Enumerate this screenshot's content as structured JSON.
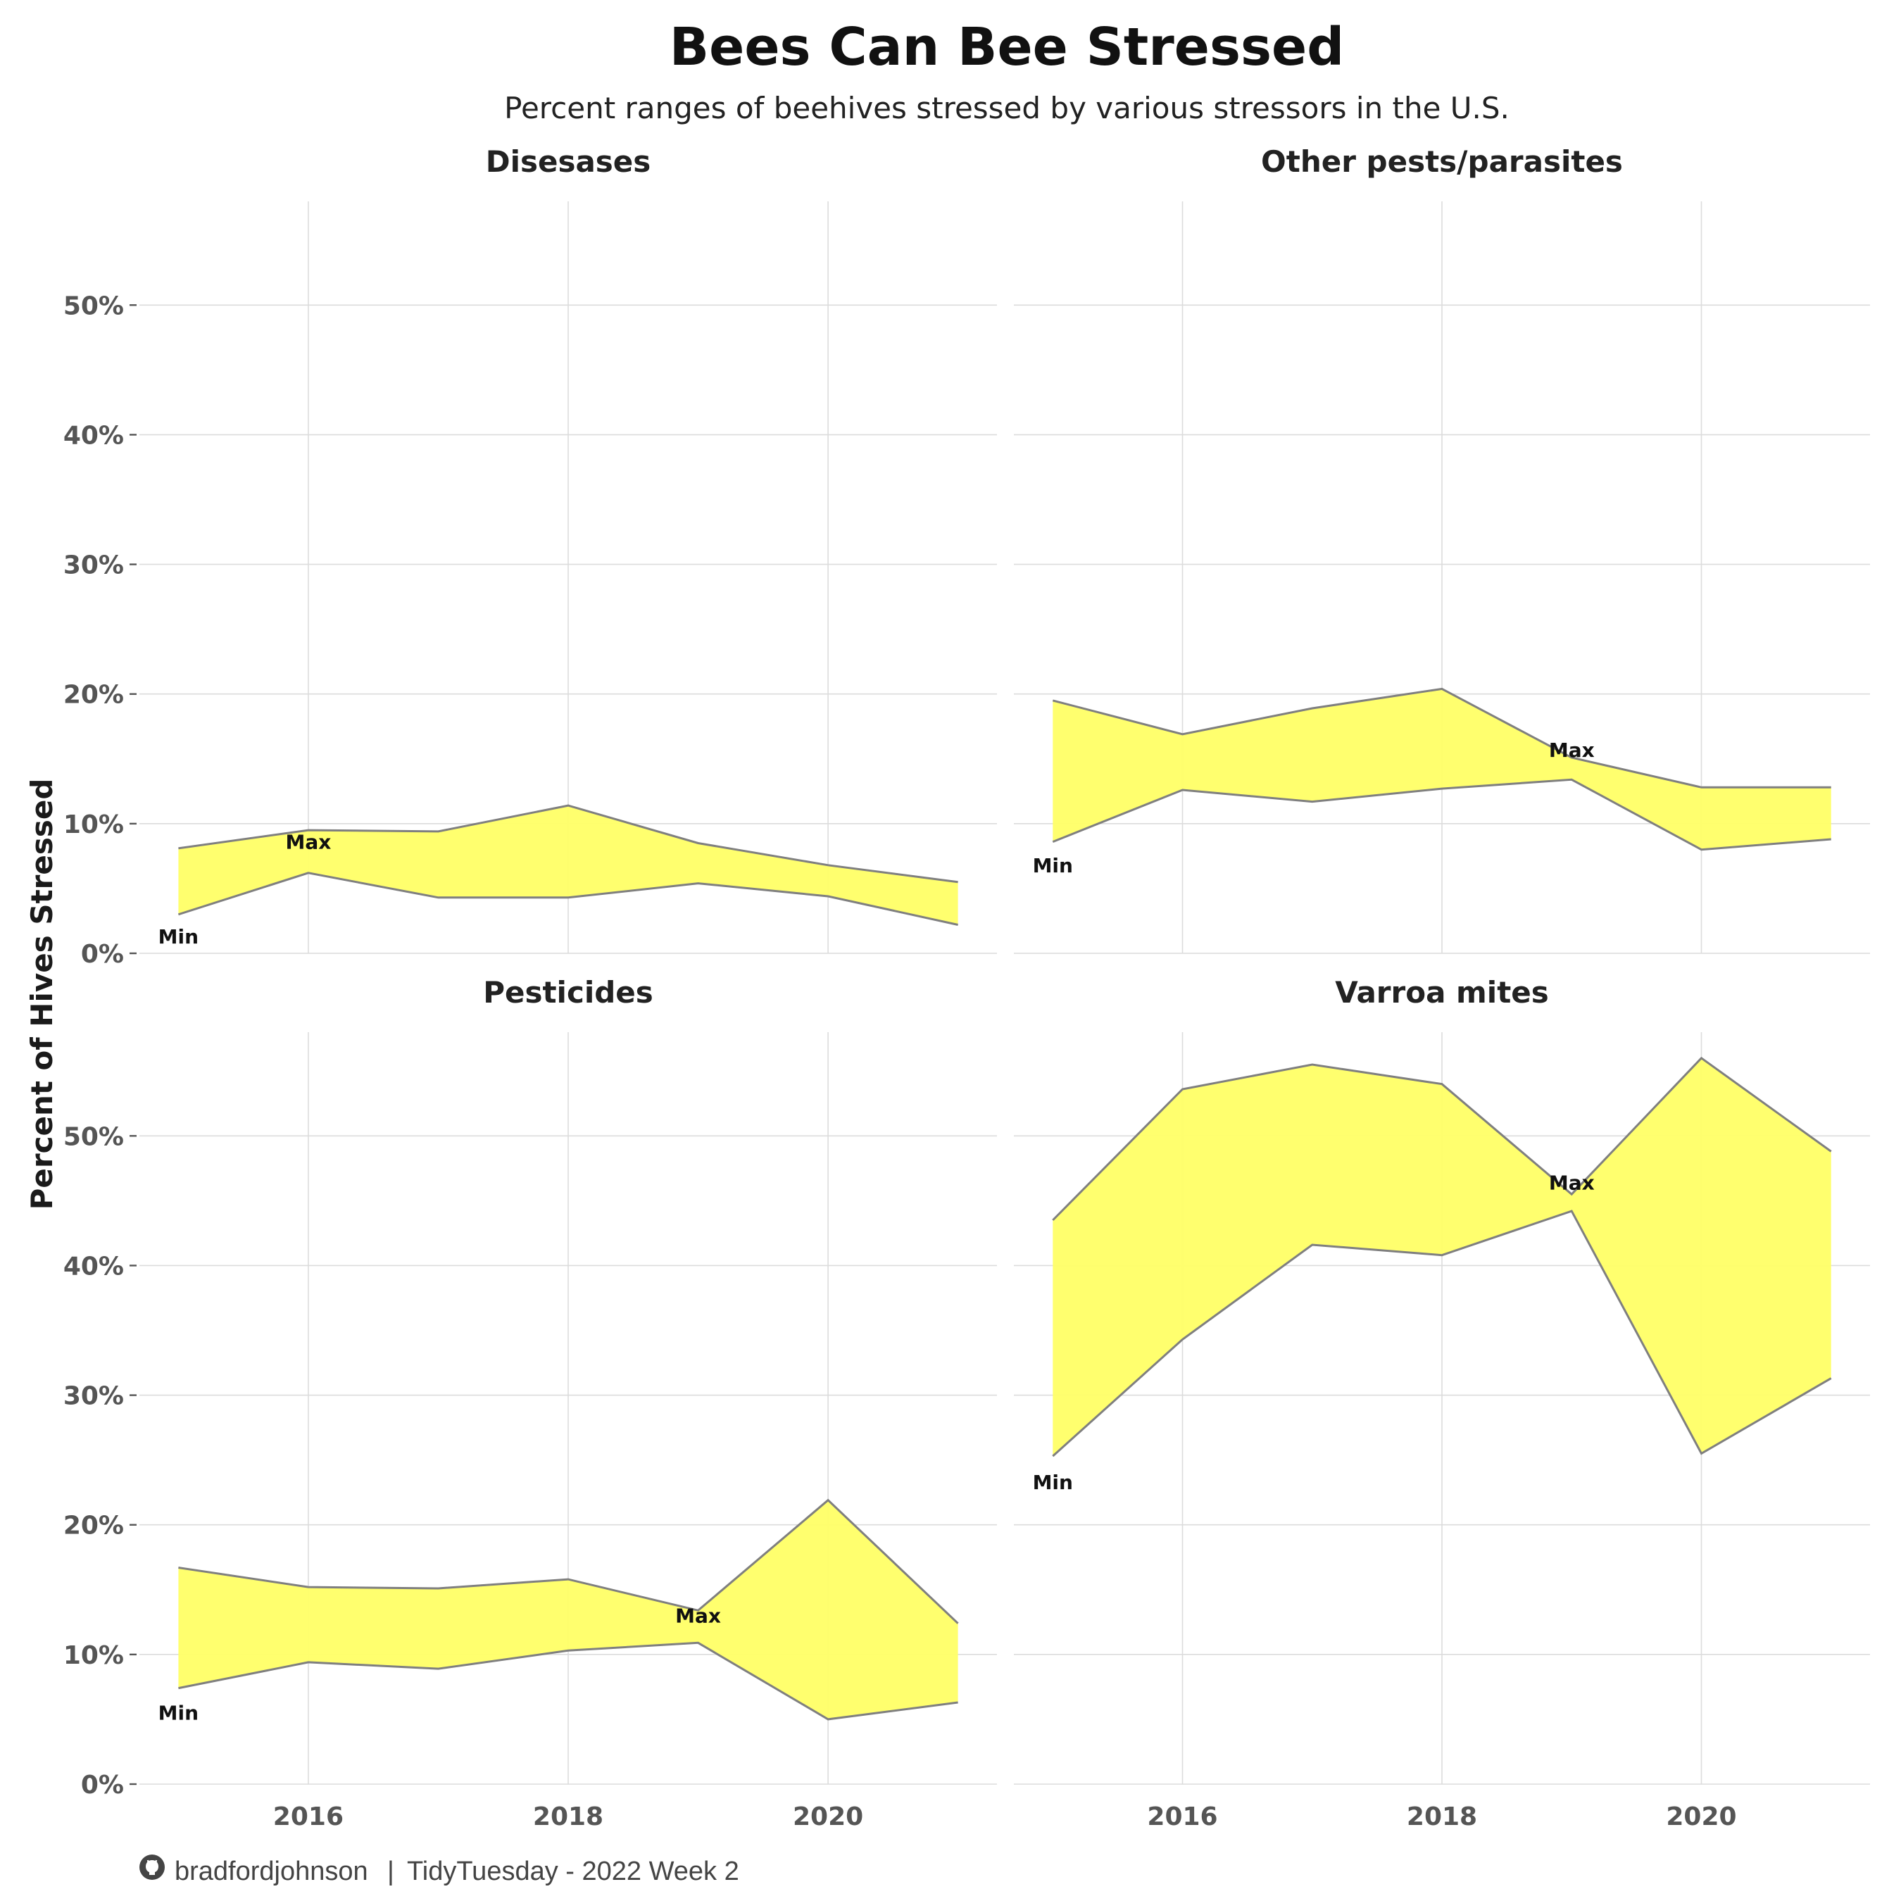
{
  "header": {
    "title": "Bees Can Bee Stressed",
    "subtitle": "Percent ranges of beehives stressed by various stressors in the U.S."
  },
  "caption": {
    "github_icon": "github-icon",
    "author": "bradfordjohnson",
    "separator": "|",
    "source": "TidyTuesday - 2022 Week 2"
  },
  "colors": {
    "ribbon_fill": "#ffff66",
    "ribbon_line": "#7f7f7f",
    "grid": "#dcdcdc"
  },
  "chart_data": {
    "type": "area",
    "chart_type_detail": "ribbon (min-max range) small multiples",
    "ylabel": "Percent of Hives Stressed",
    "ylim": [
      0,
      0.58
    ],
    "yticks": [
      0,
      0.1,
      0.2,
      0.3,
      0.4,
      0.5
    ],
    "ytick_labels": [
      "0%",
      "10%",
      "20%",
      "30%",
      "40%",
      "50%"
    ],
    "xlim": [
      2014.7,
      2021.3
    ],
    "xticks": [
      2016,
      2018,
      2020
    ],
    "xtick_labels": [
      "2016",
      "2018",
      "2020"
    ],
    "x": [
      2015,
      2016,
      2017,
      2018,
      2019,
      2020,
      2021
    ],
    "grid": true,
    "legend": "none",
    "panels": [
      {
        "name": "Disesases",
        "min": [
          0.03,
          0.062,
          0.043,
          0.043,
          0.054,
          0.044,
          0.022
        ],
        "max": [
          0.081,
          0.095,
          0.094,
          0.114,
          0.085,
          0.068,
          0.055
        ],
        "annotations": [
          {
            "text": "Min",
            "x": 2015,
            "y": 0.013
          },
          {
            "text": "Max",
            "x": 2016,
            "y": 0.086
          }
        ]
      },
      {
        "name": "Other pests/parasites",
        "min": [
          0.086,
          0.126,
          0.117,
          0.127,
          0.134,
          0.08,
          0.088
        ],
        "max": [
          0.195,
          0.169,
          0.189,
          0.204,
          0.151,
          0.128,
          0.128
        ],
        "annotations": [
          {
            "text": "Min",
            "x": 2015,
            "y": 0.068
          },
          {
            "text": "Max",
            "x": 2019,
            "y": 0.157
          }
        ]
      },
      {
        "name": "Pesticides",
        "min": [
          0.074,
          0.094,
          0.089,
          0.103,
          0.109,
          0.05,
          0.063
        ],
        "max": [
          0.167,
          0.152,
          0.151,
          0.158,
          0.134,
          0.219,
          0.124
        ],
        "annotations": [
          {
            "text": "Min",
            "x": 2015,
            "y": 0.055
          },
          {
            "text": "Max",
            "x": 2019,
            "y": 0.13
          }
        ]
      },
      {
        "name": "Varroa mites",
        "min": [
          0.253,
          0.343,
          0.416,
          0.408,
          0.442,
          0.255,
          0.313
        ],
        "max": [
          0.435,
          0.536,
          0.555,
          0.54,
          0.455,
          0.56,
          0.488
        ],
        "annotations": [
          {
            "text": "Min",
            "x": 2015,
            "y": 0.233
          },
          {
            "text": "Max",
            "x": 2019,
            "y": 0.464
          }
        ]
      }
    ]
  }
}
